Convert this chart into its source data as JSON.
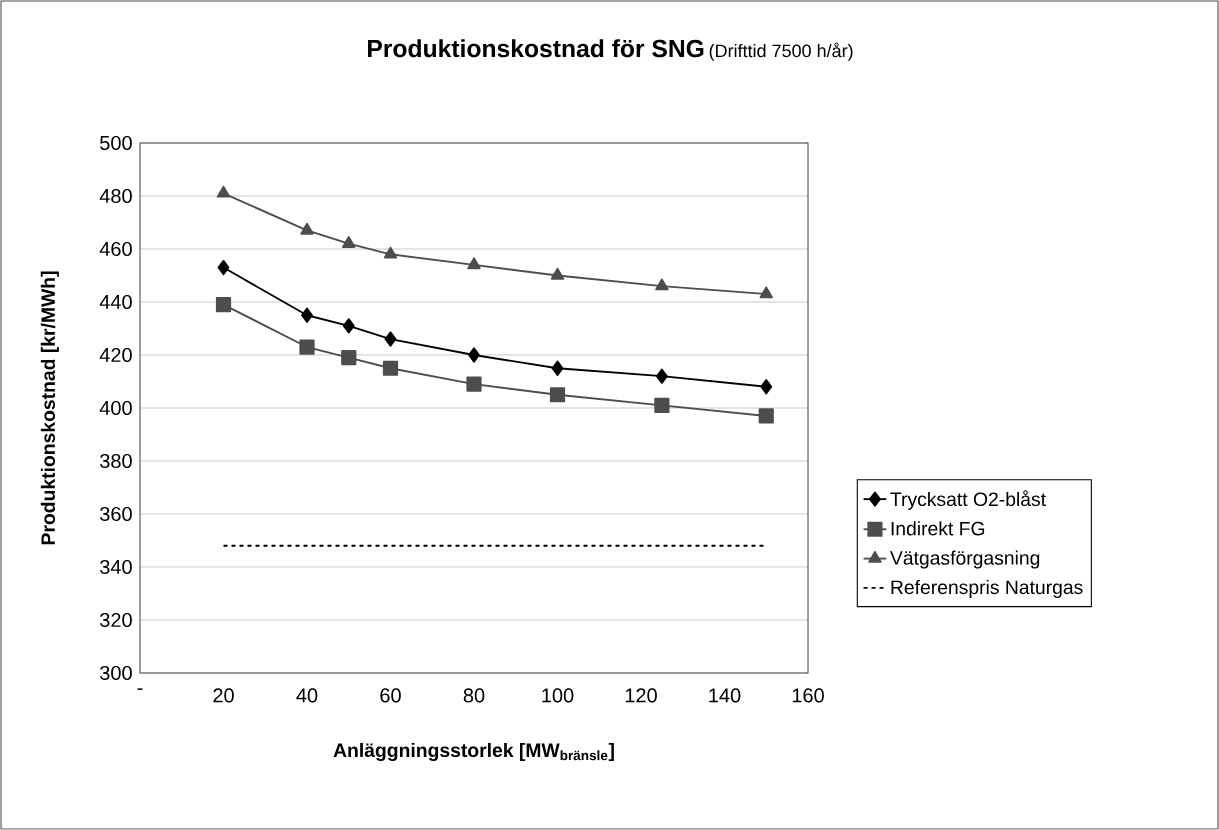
{
  "chart_data": {
    "type": "line",
    "title": "Produktionskostnad för SNG",
    "subtitle": "(Drifttid 7500 h/år)",
    "xlabel": "Anläggningsstorlek [MW$_{bränsle}$]",
    "ylabel": "Produktionskostnad [kr/MWh]",
    "x": [
      20,
      40,
      50,
      60,
      80,
      100,
      125,
      150
    ],
    "series": [
      {
        "name": "Trycksatt O2-blåst",
        "color": "#000000",
        "marker": "diamond",
        "line_style": "solid",
        "values": [
          453,
          435,
          431,
          426,
          420,
          415,
          412,
          408
        ]
      },
      {
        "name": "Indirekt FG",
        "color": "#4d4d4d",
        "marker": "square",
        "line_style": "solid",
        "values": [
          439,
          423,
          419,
          415,
          409,
          405,
          401,
          397
        ]
      },
      {
        "name": "Vätgasförgasning",
        "color": "#4d4d4d",
        "marker": "triangle",
        "line_style": "solid",
        "values": [
          481,
          467,
          462,
          458,
          454,
          450,
          446,
          443
        ]
      },
      {
        "name": "Referenspris Naturgas",
        "color": "#000000",
        "marker": "none",
        "line_style": "dotted",
        "values": [
          348,
          348,
          348,
          348,
          348,
          348,
          348,
          348
        ]
      }
    ],
    "xlim": [
      0,
      160
    ],
    "xticks": [
      {
        "value": 0,
        "label": "-"
      },
      20,
      40,
      60,
      80,
      100,
      120,
      140,
      160
    ],
    "ylim": [
      300,
      500
    ],
    "yticks": [
      300,
      320,
      340,
      360,
      380,
      400,
      420,
      440,
      460,
      480,
      500
    ],
    "grid": "y",
    "legend": "right"
  }
}
